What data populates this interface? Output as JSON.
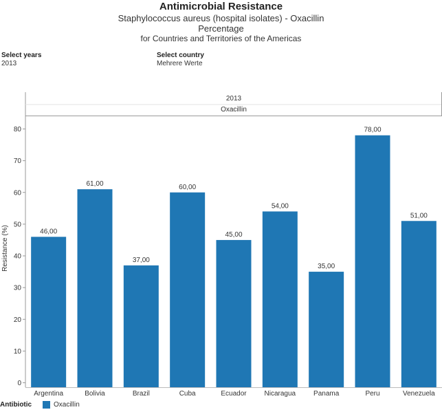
{
  "header": {
    "title": "Antimicrobial Resistance",
    "subtitle": "Staphylococcus aureus  (hospital isolates) - Oxacillin",
    "unit_line": "Percentage",
    "region_line": "for Countries and Territories of the Americas"
  },
  "filters": {
    "years": {
      "label": "Select years",
      "value": "2013"
    },
    "country": {
      "label": "Select country",
      "value": "Mehrere Werte"
    }
  },
  "legend": {
    "title": "Antibiotic",
    "item": "Oxacillin",
    "color": "#1f77b4"
  },
  "chart_data": {
    "type": "bar",
    "panel_header": "2013",
    "panel_subheader": "Oxacillin",
    "ylabel": "Resistance (%)",
    "ylim": [
      0,
      84
    ],
    "yticks": [
      0,
      10,
      20,
      30,
      40,
      50,
      60,
      70,
      80
    ],
    "categories": [
      "Argentina",
      "Bolivia",
      "Brazil",
      "Cuba",
      "Ecuador",
      "Nicaragua",
      "Panama",
      "Peru",
      "Venezuela"
    ],
    "values": [
      46,
      61,
      37,
      60,
      45,
      54,
      35,
      78,
      51
    ],
    "data_labels": [
      "46,00",
      "61,00",
      "37,00",
      "60,00",
      "45,00",
      "54,00",
      "35,00",
      "78,00",
      "51,00"
    ],
    "bar_color": "#1f77b4",
    "grid": false
  }
}
